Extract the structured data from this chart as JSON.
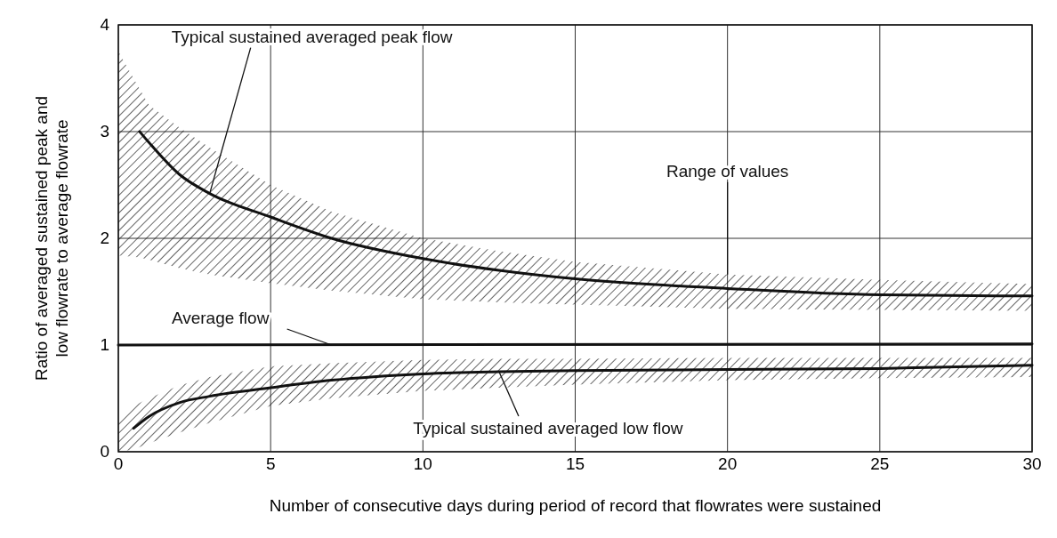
{
  "chart_data": {
    "type": "line",
    "xlabel": "Number of consecutive days during period of record that flowrates were sustained",
    "ylabel": "Ratio of averaged sustained peak and low flowrate to average flowrate",
    "xlim": [
      0,
      30
    ],
    "ylim": [
      0,
      4
    ],
    "xticks": [
      0,
      5,
      10,
      15,
      20,
      25,
      30
    ],
    "yticks": [
      0,
      1,
      2,
      3,
      4
    ],
    "grid": true,
    "marker": "none",
    "line_style": "solid",
    "series": [
      {
        "color": "#111111",
        "x": [
          0,
          0.7,
          1,
          2,
          3,
          5,
          7,
          10,
          12.5,
          15,
          20,
          25,
          30
        ],
        "values": [
          null,
          3.0,
          2.9,
          2.6,
          2.42,
          2.2,
          2.0,
          1.81,
          1.7,
          1.62,
          1.53,
          1.47,
          1.46
        ],
        "lower": [
          1.84,
          1.82,
          1.8,
          1.72,
          1.66,
          1.58,
          1.51,
          1.43,
          1.4,
          1.38,
          1.34,
          1.33,
          1.32
        ],
        "upper": [
          3.75,
          3.4,
          3.25,
          3.04,
          2.85,
          2.5,
          2.25,
          2.0,
          1.88,
          1.78,
          1.66,
          1.61,
          1.57
        ]
      },
      {
        "color": "#111111",
        "x": [
          0,
          30
        ],
        "values": [
          1.0,
          1.01
        ]
      },
      {
        "color": "#111111",
        "x": [
          0,
          0.5,
          1,
          2,
          3,
          5,
          7,
          10,
          12.5,
          15,
          20,
          25,
          30
        ],
        "values": [
          null,
          0.22,
          0.33,
          0.46,
          0.52,
          0.6,
          0.67,
          0.73,
          0.75,
          0.76,
          0.77,
          0.78,
          0.81
        ],
        "lower": [
          0,
          0.02,
          0.08,
          0.18,
          0.27,
          0.43,
          0.5,
          0.57,
          0.6,
          0.63,
          0.67,
          0.69,
          0.7
        ],
        "upper": [
          0.3,
          0.43,
          0.5,
          0.62,
          0.7,
          0.8,
          0.83,
          0.86,
          0.87,
          0.87,
          0.88,
          0.88,
          0.88
        ]
      }
    ],
    "annotations": [
      {
        "text": "Typical sustained averaged peak flow",
        "x": 3,
        "y": 2.42
      },
      {
        "text": "Average flow",
        "x": 7,
        "y": 1.0
      },
      {
        "text": "Range of values",
        "x": 20,
        "y": 1.66
      },
      {
        "text": "Typical sustained averaged low flow",
        "x": 12.5,
        "y": 0.75
      }
    ]
  }
}
